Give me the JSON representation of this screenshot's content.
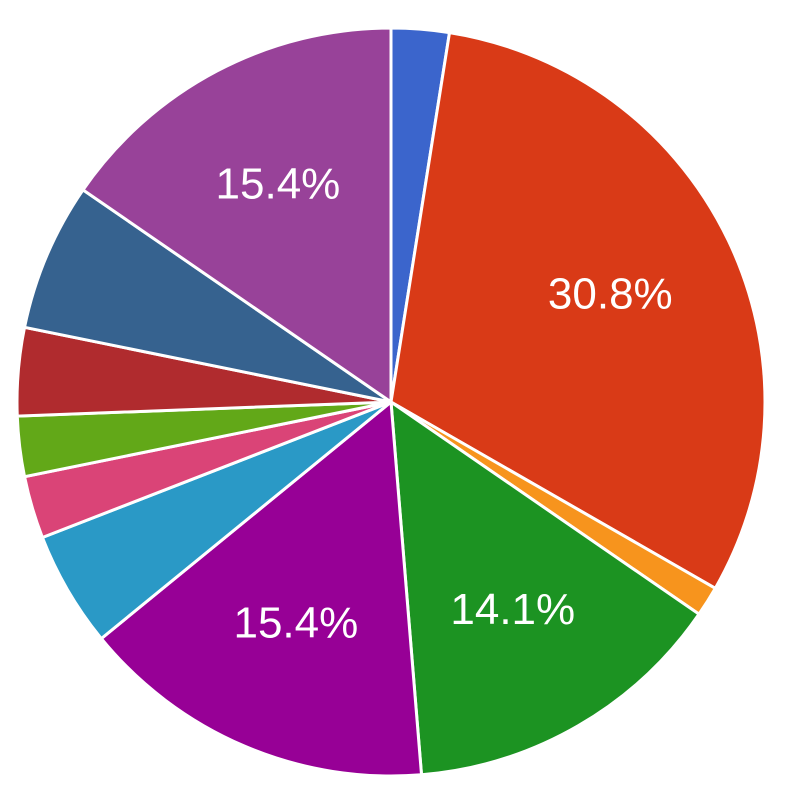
{
  "chart_data": {
    "type": "pie",
    "values": [
      2.5,
      30.8,
      1.3,
      14.1,
      15.4,
      5.0,
      2.7,
      2.6,
      3.8,
      6.4,
      15.4
    ],
    "value_labels": [
      null,
      "30.8%",
      null,
      "14.1%",
      "15.4%",
      null,
      null,
      null,
      null,
      null,
      "15.4%"
    ],
    "colors": [
      "#3b65cc",
      "#d93a17",
      "#f7941d",
      "#1c9322",
      "#970096",
      "#2a99c6",
      "#da4477",
      "#62a818",
      "#b02b2e",
      "#36628f",
      "#984299"
    ]
  }
}
